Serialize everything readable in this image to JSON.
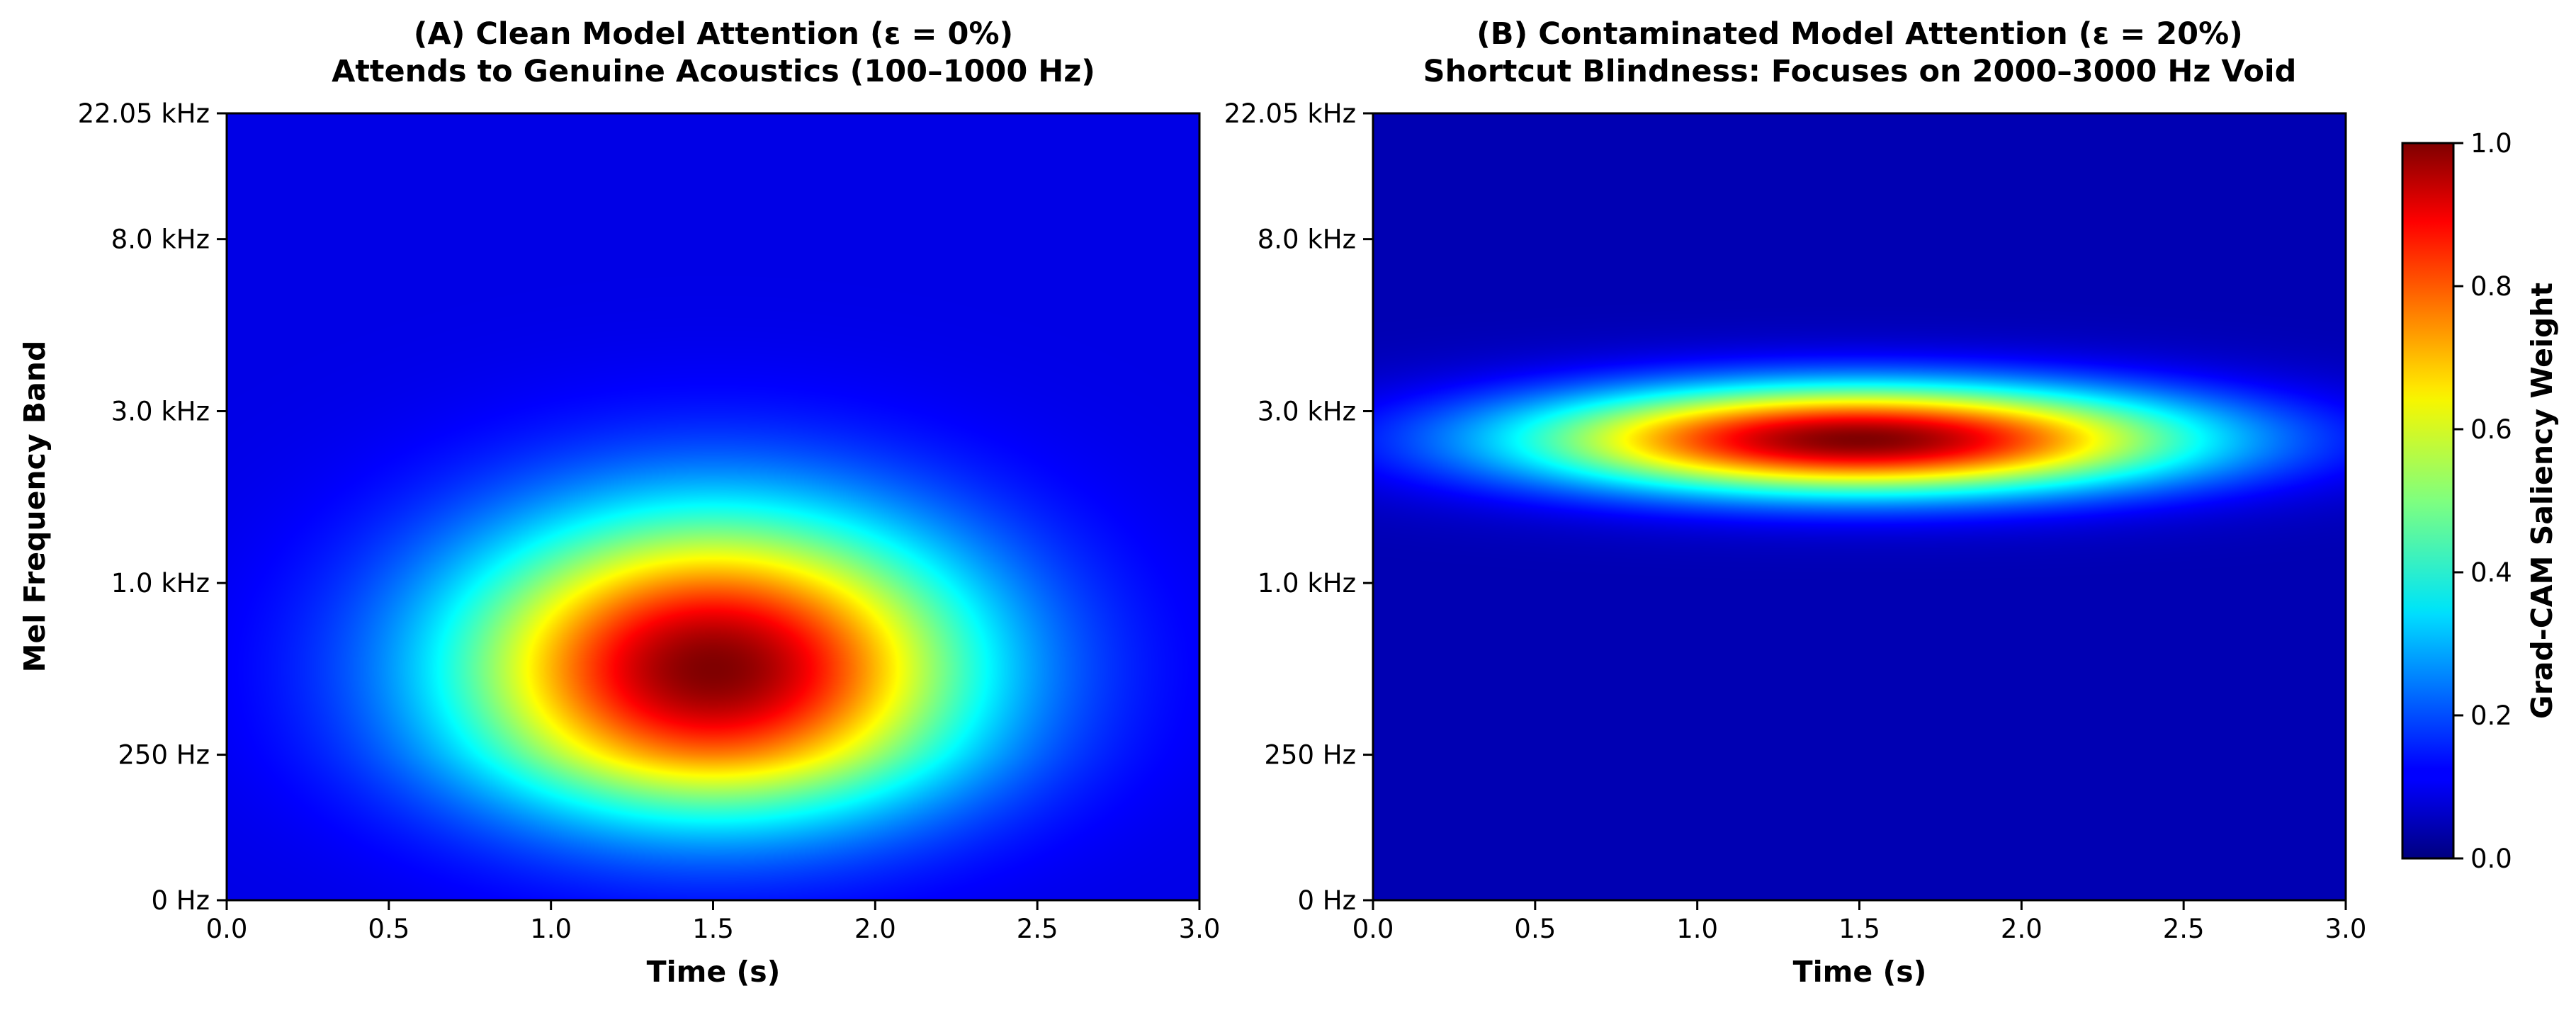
{
  "chart_data": [
    {
      "type": "heatmap",
      "title": "(A) Clean Model Attention (ε = 0%)",
      "subtitle": "Attends to Genuine Acoustics (100–1000 Hz)",
      "xlabel": "Time (s)",
      "ylabel": "Mel Frequency Band",
      "xlim": [
        0.0,
        3.0
      ],
      "x_ticks": [
        "0.0",
        "0.5",
        "1.0",
        "1.5",
        "2.0",
        "2.5",
        "3.0"
      ],
      "y_ticks": [
        "0 Hz",
        "250 Hz",
        "1.0 kHz",
        "3.0 kHz",
        "8.0 kHz",
        "22.05 kHz"
      ],
      "colormap": "jet",
      "value_range": [
        0.0,
        1.0
      ],
      "peak": {
        "time_s": 1.5,
        "freq": "≈500 Hz",
        "value": 1.0
      },
      "spread": {
        "time_sigma_s": 0.55,
        "freq_sigma_bands": 0.62
      },
      "background_value": 0.1
    },
    {
      "type": "heatmap",
      "title": "(B) Contaminated Model Attention (ε = 20%)",
      "subtitle": "Shortcut Blindness: Focuses on 2000–3000 Hz Void",
      "xlabel": "Time (s)",
      "ylabel": "",
      "xlim": [
        0.0,
        3.0
      ],
      "x_ticks": [
        "0.0",
        "0.5",
        "1.0",
        "1.5",
        "2.0",
        "2.5",
        "3.0"
      ],
      "y_ticks": [
        "0 Hz",
        "250 Hz",
        "1.0 kHz",
        "3.0 kHz",
        "8.0 kHz",
        "22.05 kHz"
      ],
      "colormap": "jet",
      "value_range": [
        0.0,
        1.0
      ],
      "peak": {
        "time_s": 1.5,
        "freq": "≈2.5 kHz",
        "value": 1.0
      },
      "spread": {
        "time_sigma_s": 0.72,
        "freq_sigma_bands": 0.22
      },
      "background_value": 0.05
    }
  ],
  "colorbar": {
    "label": "Grad-CAM Saliency Weight",
    "ticks": [
      "0.0",
      "0.2",
      "0.4",
      "0.6",
      "0.8",
      "1.0"
    ],
    "tick_values": [
      0.0,
      0.2,
      0.4,
      0.6,
      0.8,
      1.0
    ]
  }
}
